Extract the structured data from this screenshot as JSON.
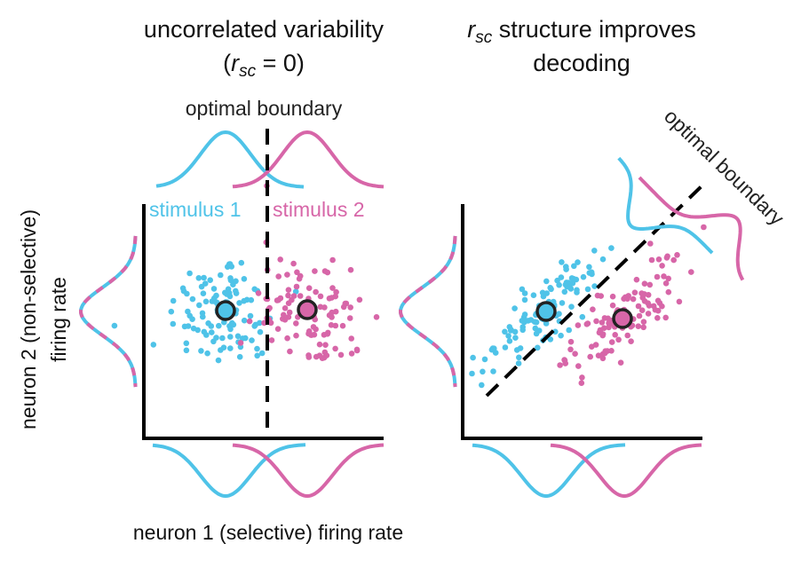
{
  "colors": {
    "stimulus_1": "#4fc3e8",
    "stimulus_2": "#d766a8",
    "boundary": "#000000",
    "axis": "#000000"
  },
  "left_panel": {
    "title_line1": "uncorrelated variability",
    "title_line2_prefix": "(",
    "title_line2_r": "r",
    "title_line2_sub": "sc",
    "title_line2_suffix": " = 0)",
    "boundary_label": "optimal boundary",
    "stimulus_1_label": "stimulus 1",
    "stimulus_2_label": "stimulus 2",
    "correlation": 0,
    "stimulus_1_mean": [
      0.34,
      0.55
    ],
    "stimulus_2_mean": [
      0.68,
      0.55
    ],
    "points_per_stimulus": 110,
    "boundary": "vertical"
  },
  "right_panel": {
    "title_line1_r": "r",
    "title_line1_sub": "sc",
    "title_line1_rest": " structure improves",
    "title_line2": "decoding",
    "boundary_label": "optimal boundary",
    "correlation": "positive",
    "stimulus_1_mean": [
      0.35,
      0.55
    ],
    "stimulus_2_mean": [
      0.67,
      0.5
    ],
    "points_per_stimulus": 110,
    "boundary": "diagonal"
  },
  "axes": {
    "y_label_line1": "neuron 2 (non-selective)",
    "y_label_line2": "firing rate",
    "x_label": "neuron 1 (selective) firing rate"
  }
}
